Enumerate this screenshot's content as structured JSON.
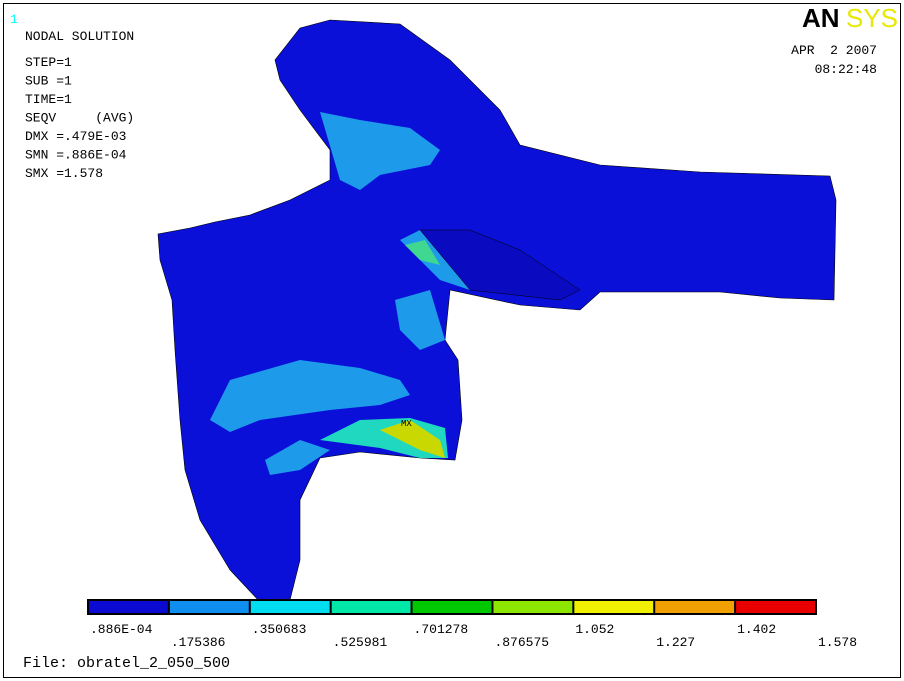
{
  "window_number": "1",
  "logo": {
    "left": "AN",
    "right": "SYS"
  },
  "title": "NODAL SOLUTION",
  "info_lines": [
    "STEP=1",
    "SUB =1",
    "TIME=1",
    "SEQV     (AVG)",
    "DMX =.479E-03",
    "SMN =.886E-04",
    "SMX =1.578"
  ],
  "date": "APR  2 2007",
  "time": "08:22:48",
  "max_marker": "MX",
  "legend": {
    "colors": [
      "#0a0ad2",
      "#0f8ef0",
      "#00dcf0",
      "#00e8a8",
      "#00c800",
      "#8ce600",
      "#f0f000",
      "#f0a000",
      "#e80000"
    ],
    "labels": [
      ".886E-04",
      ".175386",
      ".350683",
      ".525981",
      ".701278",
      ".876575",
      "1.052",
      "1.227",
      "1.402",
      "1.578"
    ]
  },
  "file_label": "File: obratel_2_050_500"
}
